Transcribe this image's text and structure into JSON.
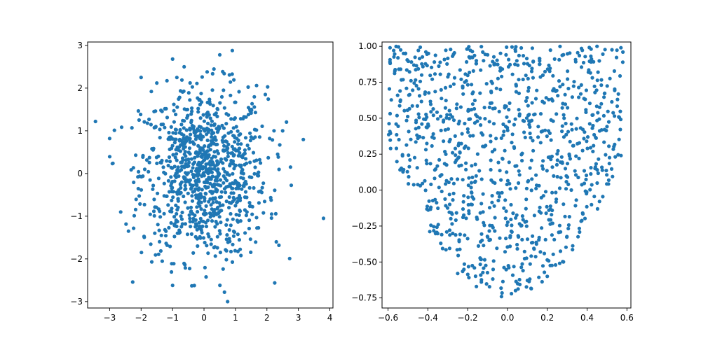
{
  "chart_data": [
    {
      "type": "scatter",
      "title": "",
      "xlabel": "",
      "ylabel": "",
      "xlim": [
        -3.7,
        4.1
      ],
      "ylim": [
        -3.15,
        3.08
      ],
      "xticks": [
        -3,
        -2,
        -1,
        0,
        1,
        2,
        3,
        4
      ],
      "xtick_labels": [
        "−3",
        "−2",
        "−1",
        "0",
        "1",
        "2",
        "3",
        "4"
      ],
      "yticks": [
        -3,
        -2,
        -1,
        0,
        1,
        2,
        3
      ],
      "ytick_labels": [
        "−3",
        "−2",
        "−1",
        "0",
        "1",
        "2",
        "3"
      ],
      "grid": false,
      "legend": "none",
      "marker_color": "#1f77b4",
      "distribution": "standard bivariate normal, approx. 1000 samples",
      "n_points": 1000,
      "outliers": [
        {
          "x": -3.45,
          "y": 1.22
        },
        {
          "x": 3.8,
          "y": -1.05
        },
        {
          "x": 0.9,
          "y": 2.88
        },
        {
          "x": 0.5,
          "y": 2.78
        },
        {
          "x": -1.0,
          "y": 2.68
        },
        {
          "x": 0.75,
          "y": -3.0
        },
        {
          "x": 0.65,
          "y": -2.78
        },
        {
          "x": -1.0,
          "y": -2.62
        },
        {
          "x": 2.75,
          "y": 0.15
        },
        {
          "x": 2.3,
          "y": -1.6
        },
        {
          "x": -2.4,
          "y": -1.35
        },
        {
          "x": -3.0,
          "y": 0.82
        },
        {
          "x": 2.5,
          "y": 1.0
        },
        {
          "x": -2.0,
          "y": 2.25
        },
        {
          "x": 1.95,
          "y": 1.85
        },
        {
          "x": -1.5,
          "y": 2.12
        },
        {
          "x": 0.1,
          "y": 2.38
        }
      ]
    },
    {
      "type": "scatter",
      "title": "",
      "xlabel": "",
      "ylabel": "",
      "xlim": [
        -0.63,
        0.62
      ],
      "ylim": [
        -0.82,
        1.03
      ],
      "xticks": [
        -0.6,
        -0.4,
        -0.2,
        0.0,
        0.2,
        0.4,
        0.6
      ],
      "xtick_labels": [
        "−0.6",
        "−0.4",
        "−0.2",
        "0.0",
        "0.2",
        "0.4",
        "0.6"
      ],
      "yticks": [
        -0.75,
        -0.5,
        -0.25,
        0.0,
        0.25,
        0.5,
        0.75,
        1.0
      ],
      "ytick_labels": [
        "−0.75",
        "−0.50",
        "−0.25",
        "0.00",
        "0.25",
        "0.50",
        "0.75",
        "1.00"
      ],
      "grid": false,
      "legend": "none",
      "marker_color": "#1f77b4",
      "distribution": "uniform in region bounded below by y = 3x² − 0.75 and above by y = 1",
      "n_points": 1000,
      "sample_points": [
        {
          "x": -0.59,
          "y": 0.99
        },
        {
          "x": 0.57,
          "y": 0.99
        },
        {
          "x": 0.45,
          "y": 1.0
        },
        {
          "x": -0.55,
          "y": 0.92
        },
        {
          "x": -0.03,
          "y": -0.74
        },
        {
          "x": 0.02,
          "y": -0.72
        },
        {
          "x": -0.25,
          "y": -0.58
        },
        {
          "x": 0.2,
          "y": -0.6
        },
        {
          "x": 0.58,
          "y": 0.96
        },
        {
          "x": -0.45,
          "y": 0.36
        }
      ]
    }
  ]
}
